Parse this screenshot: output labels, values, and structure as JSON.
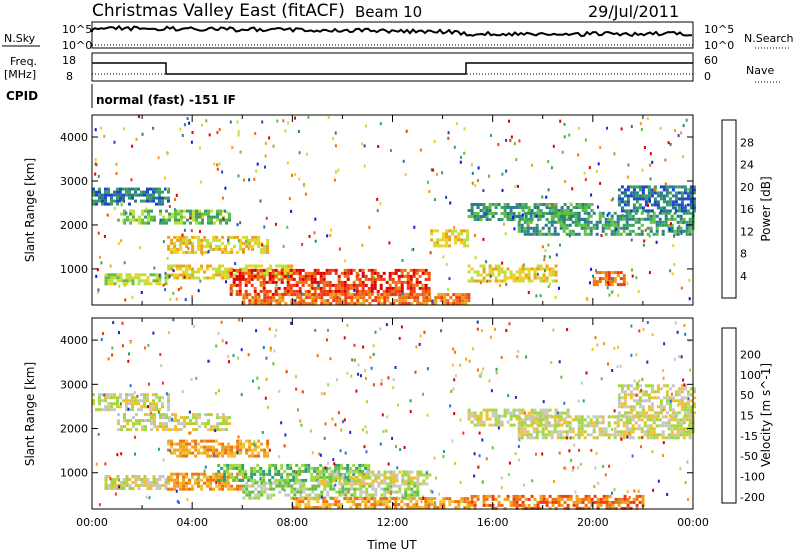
{
  "header": {
    "station": "Christmas Valley East (fitACF)",
    "beam": "Beam 10",
    "date": "29/Jul/2011"
  },
  "panels": {
    "noise": {
      "left_label": "N.Sky",
      "right_label": "N.Search",
      "left_ticks": [
        "10^5",
        "10^0"
      ],
      "right_ticks": [
        "10^5",
        "10^0"
      ]
    },
    "freq": {
      "left_label_1": "Freq.",
      "left_label_2": "[MHz]",
      "right_label": "Nave",
      "left_ticks": [
        "18",
        "8"
      ],
      "right_ticks": [
        "60",
        "0"
      ]
    },
    "cpid": {
      "label": "CPID",
      "text": "normal (fast) -151 IF"
    }
  },
  "chart_data": [
    {
      "type": "heatmap",
      "title": "",
      "ylabel": "Slant Range [km]",
      "xlabel": "",
      "y_ticks": [
        "1000",
        "2000",
        "3000",
        "4000"
      ],
      "ylim": [
        180,
        4500
      ],
      "xlim_hours": [
        0,
        24
      ],
      "colorbar": {
        "label": "Power [dB]",
        "ticks": [
          "4",
          "8",
          "12",
          "16",
          "20",
          "24",
          "28"
        ],
        "colors": [
          "#0a14f0",
          "#1e46c8",
          "#2a7a90",
          "#3aa060",
          "#60c040",
          "#b8e040",
          "#f0d020",
          "#f0a018",
          "#f07010",
          "#f03a10",
          "#e00000"
        ]
      },
      "echo_regions": [
        {
          "t0": 0.0,
          "t1": 3.0,
          "r0": 2450,
          "r1": 2850,
          "level": 2
        },
        {
          "t0": 1.0,
          "t1": 5.5,
          "r0": 2050,
          "r1": 2350,
          "level": 4
        },
        {
          "t0": 3.0,
          "t1": 7.0,
          "r0": 1350,
          "r1": 1750,
          "level": 6
        },
        {
          "t0": 0.5,
          "t1": 3.0,
          "r0": 650,
          "r1": 900,
          "level": 5
        },
        {
          "t0": 3.0,
          "t1": 8.0,
          "r0": 800,
          "r1": 1100,
          "level": 6
        },
        {
          "t0": 5.5,
          "t1": 13.5,
          "r0": 450,
          "r1": 1000,
          "level": 9
        },
        {
          "t0": 6.0,
          "t1": 15.0,
          "r0": 220,
          "r1": 450,
          "level": 8
        },
        {
          "t0": 13.5,
          "t1": 15.0,
          "r0": 1500,
          "r1": 1900,
          "level": 6
        },
        {
          "t0": 15.0,
          "t1": 18.5,
          "r0": 700,
          "r1": 1100,
          "level": 6
        },
        {
          "t0": 15.0,
          "t1": 20.0,
          "r0": 2100,
          "r1": 2500,
          "level": 3
        },
        {
          "t0": 17.0,
          "t1": 24.0,
          "r0": 1800,
          "r1": 2300,
          "level": 3
        },
        {
          "t0": 20.0,
          "t1": 21.2,
          "r0": 650,
          "r1": 950,
          "level": 8
        },
        {
          "t0": 21.0,
          "t1": 24.0,
          "r0": 2300,
          "r1": 2900,
          "level": 2
        }
      ]
    },
    {
      "type": "heatmap",
      "title": "",
      "ylabel": "Slant Range [km]",
      "xlabel": "Time UT",
      "x_ticks": [
        "00:00",
        "04:00",
        "08:00",
        "12:00",
        "16:00",
        "20:00",
        "00:00"
      ],
      "y_ticks": [
        "1000",
        "2000",
        "3000",
        "4000"
      ],
      "ylim": [
        180,
        4500
      ],
      "xlim_hours": [
        0,
        24
      ],
      "colorbar": {
        "label": "Velocity [m s^-1]",
        "ticks": [
          "200",
          "100",
          "50",
          "15",
          "-15",
          "-50",
          "-100",
          "-200"
        ],
        "colors": [
          "#1e28c8",
          "#2878d0",
          "#28a070",
          "#60c040",
          "#a0d840",
          "#c8c8c0",
          "#f0c030",
          "#f0a018",
          "#f07010",
          "#f03a10",
          "#e00000"
        ]
      },
      "echo_regions": [
        {
          "t0": 0.0,
          "t1": 3.0,
          "r0": 2400,
          "r1": 2800,
          "level": 5
        },
        {
          "t0": 1.0,
          "t1": 5.5,
          "r0": 2000,
          "r1": 2350,
          "level": 5
        },
        {
          "t0": 3.0,
          "t1": 7.0,
          "r0": 1350,
          "r1": 1750,
          "level": 7
        },
        {
          "t0": 0.5,
          "t1": 3.0,
          "r0": 650,
          "r1": 950,
          "level": 5
        },
        {
          "t0": 3.0,
          "t1": 6.0,
          "r0": 600,
          "r1": 1000,
          "level": 7
        },
        {
          "t0": 5.0,
          "t1": 11.0,
          "r0": 800,
          "r1": 1200,
          "level": 3
        },
        {
          "t0": 6.0,
          "t1": 13.0,
          "r0": 400,
          "r1": 800,
          "level": 4
        },
        {
          "t0": 8.0,
          "t1": 15.0,
          "r0": 200,
          "r1": 450,
          "level": 7
        },
        {
          "t0": 9.0,
          "t1": 13.5,
          "r0": 750,
          "r1": 1050,
          "level": 5
        },
        {
          "t0": 15.0,
          "t1": 19.0,
          "r0": 2050,
          "r1": 2450,
          "level": 5
        },
        {
          "t0": 17.0,
          "t1": 24.0,
          "r0": 1800,
          "r1": 2300,
          "level": 5
        },
        {
          "t0": 15.0,
          "t1": 22.0,
          "r0": 200,
          "r1": 500,
          "level": 8
        },
        {
          "t0": 21.0,
          "t1": 24.0,
          "r0": 2300,
          "r1": 3000,
          "level": 5
        }
      ]
    }
  ]
}
